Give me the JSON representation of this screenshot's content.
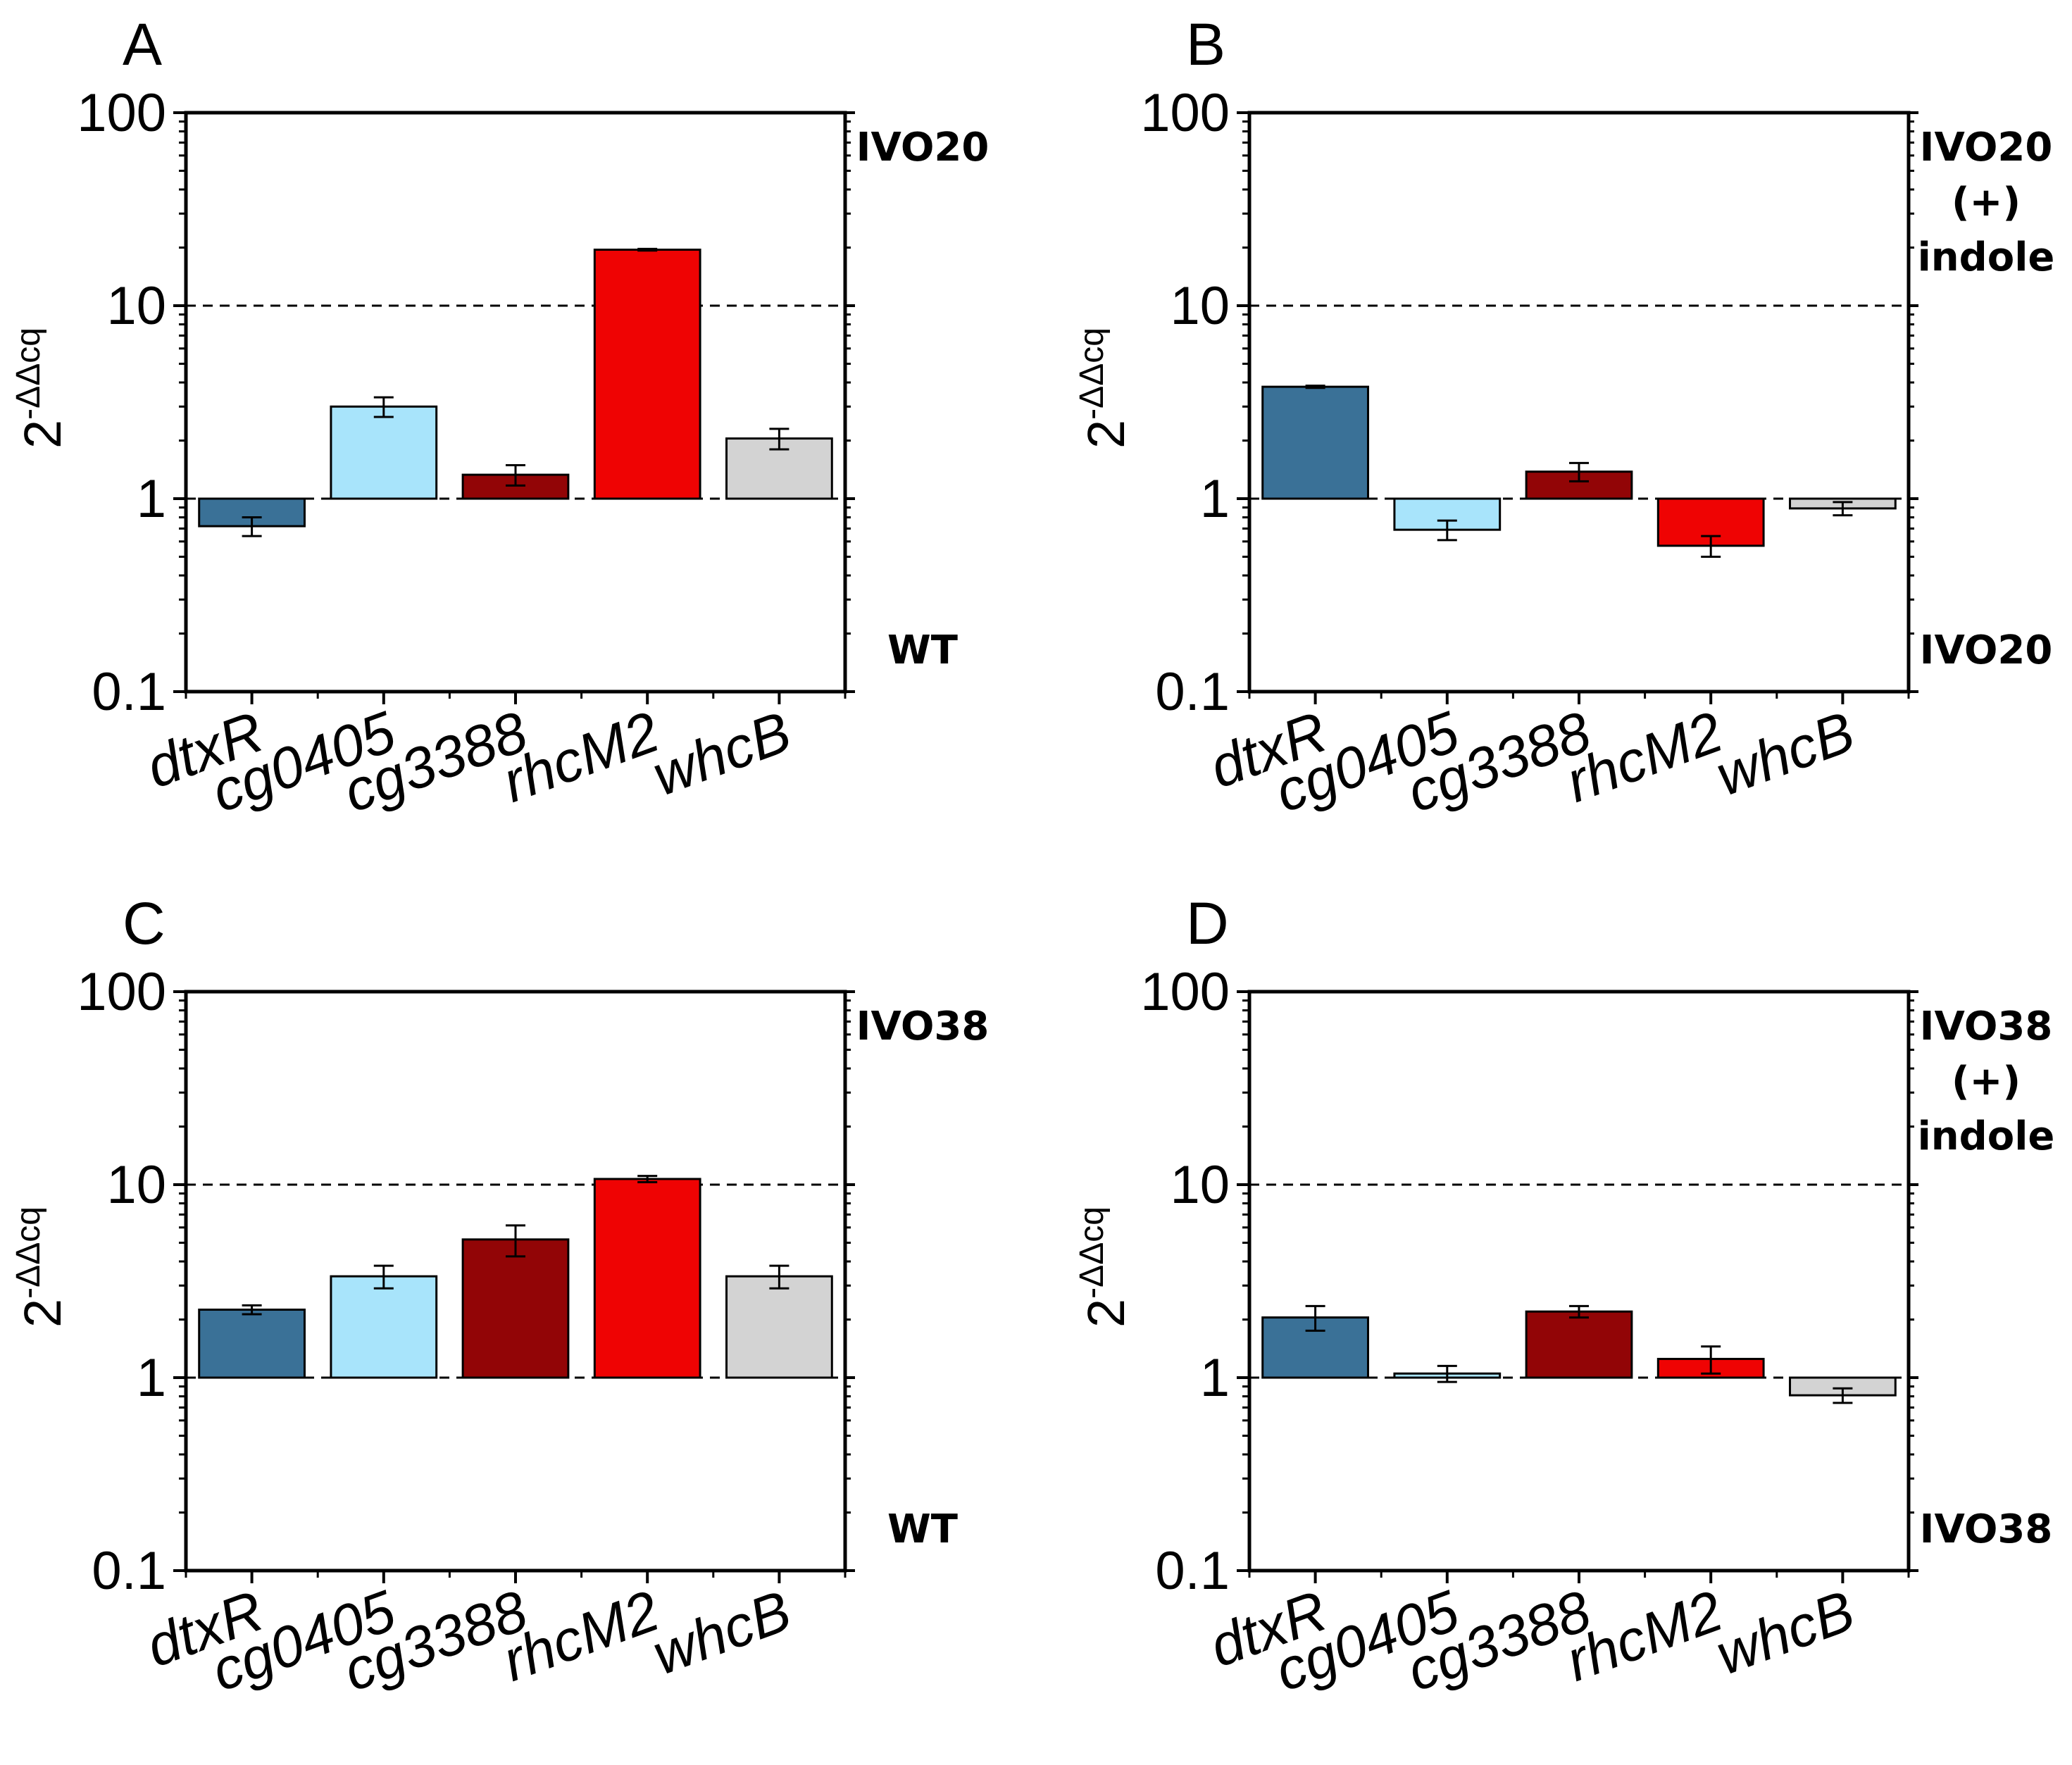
{
  "chart_data": [
    {
      "panel": "A",
      "type": "bar",
      "ylabel": "2",
      "ylabel_superscript": "-ΔΔcq",
      "yscale": "log",
      "ylim": [
        0.1,
        100
      ],
      "yticks": [
        "0.1",
        "1",
        "10",
        "100"
      ],
      "categories": [
        "dtxR",
        "cg0405",
        "cg3388",
        "rhcM2",
        "whcB"
      ],
      "values": [
        0.72,
        3.0,
        1.33,
        19.5,
        2.05
      ],
      "errors": [
        0.08,
        0.35,
        0.16,
        0.2,
        0.25
      ],
      "colors": [
        "#3a7197",
        "#a8e4fb",
        "#920506",
        "#ef0303",
        "#d3d3d3"
      ],
      "baseline": 1,
      "reference_line": 10,
      "side_label_top": [
        "IVO20"
      ],
      "side_label_bottom": [
        "WT"
      ]
    },
    {
      "panel": "B",
      "type": "bar",
      "ylabel": "2",
      "ylabel_superscript": "-ΔΔcq",
      "yscale": "log",
      "ylim": [
        0.1,
        100
      ],
      "yticks": [
        "0.1",
        "1",
        "10",
        "100"
      ],
      "categories": [
        "dtxR",
        "cg0405",
        "cg3388",
        "rhcM2",
        "whcB"
      ],
      "values": [
        3.8,
        0.69,
        1.38,
        0.57,
        0.89
      ],
      "errors": [
        0.05,
        0.08,
        0.15,
        0.07,
        0.07
      ],
      "colors": [
        "#3a7197",
        "#a8e4fb",
        "#920506",
        "#ef0303",
        "#d3d3d3"
      ],
      "baseline": 1,
      "reference_line": 10,
      "side_label_top": [
        "IVO20",
        "(+)",
        "indole"
      ],
      "side_label_bottom": [
        "IVO20"
      ]
    },
    {
      "panel": "C",
      "type": "bar",
      "ylabel": "2",
      "ylabel_superscript": "-ΔΔcq",
      "yscale": "log",
      "ylim": [
        0.1,
        100
      ],
      "yticks": [
        "0.1",
        "1",
        "10",
        "100"
      ],
      "categories": [
        "dtxR",
        "cg0405",
        "cg3388",
        "rhcM2",
        "whcB"
      ],
      "values": [
        2.25,
        3.35,
        5.2,
        10.7,
        3.35
      ],
      "errors": [
        0.12,
        0.45,
        0.95,
        0.4,
        0.45
      ],
      "colors": [
        "#3a7197",
        "#a8e4fb",
        "#920506",
        "#ef0303",
        "#d3d3d3"
      ],
      "baseline": 1,
      "reference_line": 10,
      "side_label_top": [
        "IVO38"
      ],
      "side_label_bottom": [
        "WT"
      ]
    },
    {
      "panel": "D",
      "type": "bar",
      "ylabel": "2",
      "ylabel_superscript": "-ΔΔcq",
      "yscale": "log",
      "ylim": [
        0.1,
        100
      ],
      "yticks": [
        "0.1",
        "1",
        "10",
        "100"
      ],
      "categories": [
        "dtxR",
        "cg0405",
        "cg3388",
        "rhcM2",
        "whcB"
      ],
      "values": [
        2.05,
        1.05,
        2.2,
        1.25,
        0.81
      ],
      "errors": [
        0.3,
        0.1,
        0.15,
        0.2,
        0.07
      ],
      "colors": [
        "#3a7197",
        "#a8e4fb",
        "#920506",
        "#ef0303",
        "#d3d3d3"
      ],
      "baseline": 1,
      "reference_line": 10,
      "side_label_top": [
        "IVO38",
        "(+)",
        "indole"
      ],
      "side_label_bottom": [
        "IVO38"
      ]
    }
  ]
}
